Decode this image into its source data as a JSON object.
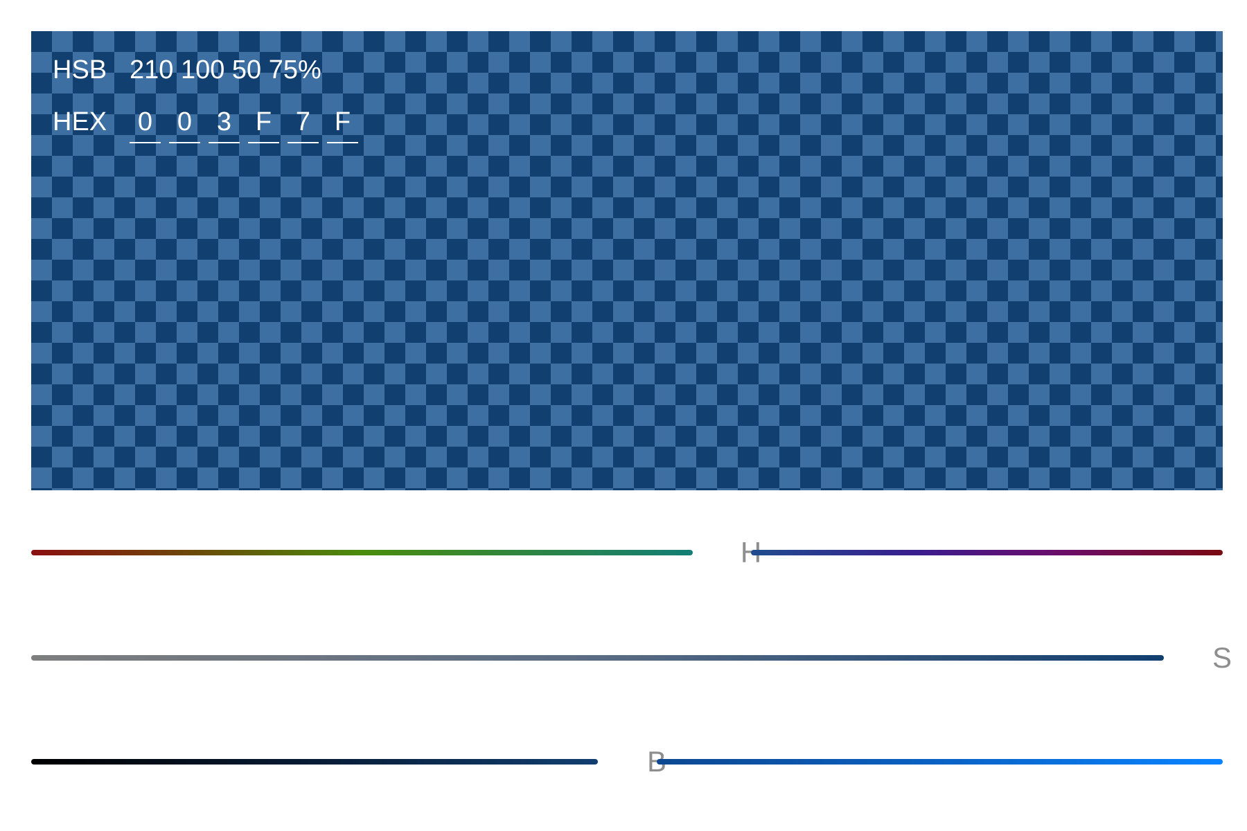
{
  "preview": {
    "fill_color": "#003F7F",
    "opacity_percent": 75,
    "checker_light": "#3d6fa2",
    "checker_dark": "#113f70",
    "hsb": {
      "label": "HSB",
      "values": "210 100 50 75%"
    },
    "hex": {
      "label": "HEX",
      "digits": [
        "0",
        "0",
        "3",
        "F",
        "7",
        "F"
      ]
    }
  },
  "sliders": {
    "hue": {
      "label": "H",
      "value": 210,
      "max": 360,
      "gradient_colors": [
        "#8a0f0f",
        "#4a8c0c",
        "#127e76",
        "#3a1d8e",
        "#7a0a12"
      ]
    },
    "saturation": {
      "label": "S",
      "value": 100,
      "max": 100,
      "gradient_colors": [
        "#7e7e7e",
        "#113f70"
      ]
    },
    "brightness": {
      "label": "B",
      "value": 50,
      "max": 100,
      "gradient_colors": [
        "#000000",
        "#0a84ff"
      ]
    }
  }
}
